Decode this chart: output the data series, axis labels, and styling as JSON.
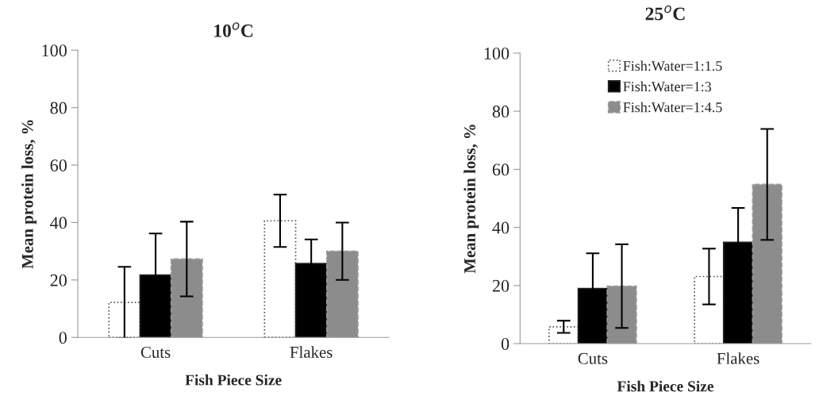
{
  "chart_data": [
    {
      "type": "bar",
      "title": "10$^{o}$C",
      "xlabel": "Fish Piece Size",
      "ylabel": "Mean protein loss, %",
      "categories": [
        "Cuts",
        "Flakes"
      ],
      "ylim": [
        0,
        100
      ],
      "yticks": [
        0,
        20,
        40,
        60,
        80,
        100
      ],
      "grid": false,
      "series": [
        {
          "color": "#ffffff",
          "values": [
            12.2,
            40.6
          ],
          "errors": [
            12.4,
            9.1
          ]
        },
        {
          "color": "#000000",
          "values": [
            21.7,
            25.7
          ],
          "errors": [
            14.5,
            8.4
          ]
        },
        {
          "color": "#8c8c8c",
          "values": [
            27.3,
            30.0
          ],
          "errors": [
            13,
            10
          ]
        }
      ]
    },
    {
      "type": "bar",
      "title": "25$^{o}$C",
      "xlabel": "Fish Piece Size",
      "ylabel": "Mean protein loss, %",
      "categories": [
        "Cuts",
        "Flakes"
      ],
      "ylim": [
        0,
        100
      ],
      "yticks": [
        0,
        20,
        40,
        60,
        80,
        100
      ],
      "grid": false,
      "legend": "top",
      "series": [
        {
          "name": "Fish:Water=1:1.5",
          "color": "#ffffff",
          "values": [
            5.8,
            23.1
          ],
          "errors": [
            2.1,
            9.6
          ]
        },
        {
          "name": "Fish:Water=1:3",
          "color": "#000000",
          "values": [
            19.0,
            34.9
          ],
          "errors": [
            12.1,
            11.8
          ]
        },
        {
          "name": "Fish:Water=1:4.5",
          "color": "#8c8c8c",
          "values": [
            19.8,
            54.8
          ],
          "errors": [
            14.4,
            19.1
          ]
        }
      ]
    }
  ]
}
